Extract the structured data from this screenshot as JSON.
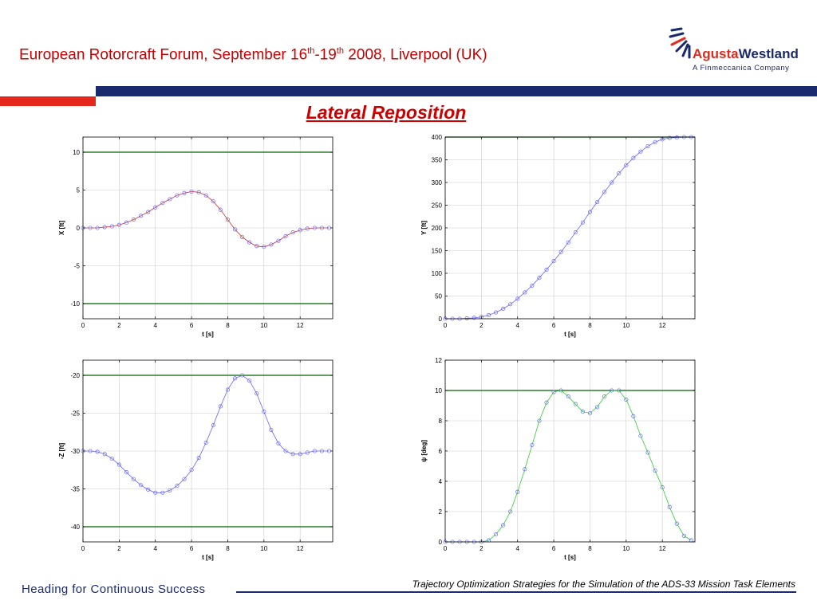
{
  "header": {
    "conference_pre": "European Rotorcraft Forum, September 16",
    "sup1": "th",
    "dash": "-19",
    "sup2": "th",
    "conference_post": " 2008, Liverpool (UK)",
    "logo_name_part1": "Agusta",
    "logo_name_part2": "Westland",
    "logo_subtitle": "A Finmeccanica Company"
  },
  "slide_title": "Lateral Reposition",
  "footer": {
    "slogan": "Heading for Continuous Success",
    "paper_title": "Trajectory Optimization Strategies for the Simulation of the ADS-33 Mission Task Elements"
  },
  "colors": {
    "title_red": "#cc0000",
    "navy": "#1a2a6c",
    "limit_green": "#006400",
    "marker_blue": "#6666ff",
    "line_red": "#cc3333",
    "line_green": "#33cc33"
  },
  "chart_data": [
    {
      "type": "line",
      "xlabel": "t [s]",
      "ylabel": "X [ft]",
      "xlim": [
        0,
        13.8
      ],
      "ylim": [
        -12,
        12
      ],
      "xticks": [
        0,
        2,
        4,
        6,
        8,
        10,
        12
      ],
      "yticks": [
        -10,
        -5,
        0,
        5,
        10
      ],
      "limits": [
        10,
        -10
      ],
      "line_color": "#cc3333",
      "x": [
        0,
        0.4,
        0.8,
        1.2,
        1.6,
        2.0,
        2.4,
        2.8,
        3.2,
        3.6,
        4.0,
        4.4,
        4.8,
        5.2,
        5.6,
        6.0,
        6.4,
        6.8,
        7.2,
        7.6,
        8.0,
        8.4,
        8.8,
        9.2,
        9.6,
        10.0,
        10.4,
        10.8,
        11.2,
        11.6,
        12.0,
        12.4,
        12.8,
        13.2,
        13.6
      ],
      "y": [
        0,
        0,
        0,
        0.1,
        0.2,
        0.4,
        0.7,
        1.1,
        1.6,
        2.1,
        2.7,
        3.3,
        3.8,
        4.3,
        4.6,
        4.8,
        4.7,
        4.3,
        3.5,
        2.4,
        1.1,
        -0.2,
        -1.2,
        -1.9,
        -2.4,
        -2.5,
        -2.2,
        -1.7,
        -1.1,
        -0.6,
        -0.3,
        -0.1,
        0,
        0,
        0
      ]
    },
    {
      "type": "line",
      "xlabel": "t [s]",
      "ylabel": "Y [ft]",
      "xlim": [
        0,
        13.8
      ],
      "ylim": [
        0,
        400
      ],
      "xticks": [
        0,
        2,
        4,
        6,
        8,
        10,
        12
      ],
      "yticks": [
        0,
        50,
        100,
        150,
        200,
        250,
        300,
        350,
        400
      ],
      "limits": [
        400
      ],
      "line_color": "#6666ff",
      "x": [
        0,
        0.4,
        0.8,
        1.2,
        1.6,
        2.0,
        2.4,
        2.8,
        3.2,
        3.6,
        4.0,
        4.4,
        4.8,
        5.2,
        5.6,
        6.0,
        6.4,
        6.8,
        7.2,
        7.6,
        8.0,
        8.4,
        8.8,
        9.2,
        9.6,
        10.0,
        10.4,
        10.8,
        11.2,
        11.6,
        12.0,
        12.4,
        12.8,
        13.2,
        13.6
      ],
      "y": [
        0,
        0,
        0,
        1,
        2,
        4,
        8,
        14,
        22,
        32,
        44,
        58,
        73,
        90,
        108,
        127,
        147,
        168,
        190,
        212,
        235,
        257,
        279,
        300,
        320,
        338,
        354,
        368,
        380,
        389,
        395,
        398,
        399,
        400,
        400
      ]
    },
    {
      "type": "line",
      "xlabel": "t [s]",
      "ylabel": "-Z [ft]",
      "xlim": [
        0,
        13.8
      ],
      "ylim": [
        -42,
        -18
      ],
      "xticks": [
        0,
        2,
        4,
        6,
        8,
        10,
        12
      ],
      "yticks": [
        -40,
        -35,
        -30,
        -25,
        -20
      ],
      "limits": [
        -20,
        -40
      ],
      "line_color": "#6666ff",
      "x": [
        0,
        0.4,
        0.8,
        1.2,
        1.6,
        2.0,
        2.4,
        2.8,
        3.2,
        3.6,
        4.0,
        4.4,
        4.8,
        5.2,
        5.6,
        6.0,
        6.4,
        6.8,
        7.2,
        7.6,
        8.0,
        8.4,
        8.8,
        9.2,
        9.6,
        10.0,
        10.4,
        10.8,
        11.2,
        11.6,
        12.0,
        12.4,
        12.8,
        13.2,
        13.6
      ],
      "y": [
        -30,
        -30,
        -30.1,
        -30.4,
        -31,
        -31.8,
        -32.8,
        -33.7,
        -34.5,
        -35.1,
        -35.5,
        -35.5,
        -35.2,
        -34.6,
        -33.7,
        -32.5,
        -30.9,
        -28.9,
        -26.6,
        -24.1,
        -21.9,
        -20.4,
        -20,
        -20.7,
        -22.4,
        -24.8,
        -27.2,
        -29,
        -30,
        -30.4,
        -30.4,
        -30.2,
        -30,
        -30,
        -30
      ]
    },
    {
      "type": "line",
      "xlabel": "t [s]",
      "ylabel": "ψ [deg]",
      "xlim": [
        0,
        13.8
      ],
      "ylim": [
        0,
        12
      ],
      "xticks": [
        0,
        2,
        4,
        6,
        8,
        10,
        12
      ],
      "yticks": [
        0,
        2,
        4,
        6,
        8,
        10,
        12
      ],
      "limits": [
        10
      ],
      "line_color": "#33cc33",
      "x": [
        0,
        0.4,
        0.8,
        1.2,
        1.6,
        2.0,
        2.4,
        2.8,
        3.2,
        3.6,
        4.0,
        4.4,
        4.8,
        5.2,
        5.6,
        6.0,
        6.4,
        6.8,
        7.2,
        7.6,
        8.0,
        8.4,
        8.8,
        9.2,
        9.6,
        10.0,
        10.4,
        10.8,
        11.2,
        11.6,
        12.0,
        12.4,
        12.8,
        13.2,
        13.6
      ],
      "y": [
        0,
        0,
        0,
        0,
        0,
        0,
        0.1,
        0.5,
        1.1,
        2.0,
        3.3,
        4.8,
        6.4,
        8.0,
        9.2,
        9.9,
        10.0,
        9.6,
        9.1,
        8.6,
        8.5,
        8.9,
        9.6,
        10.0,
        10.0,
        9.4,
        8.3,
        7.0,
        5.9,
        4.7,
        3.6,
        2.3,
        1.2,
        0.4,
        0.1
      ]
    }
  ]
}
